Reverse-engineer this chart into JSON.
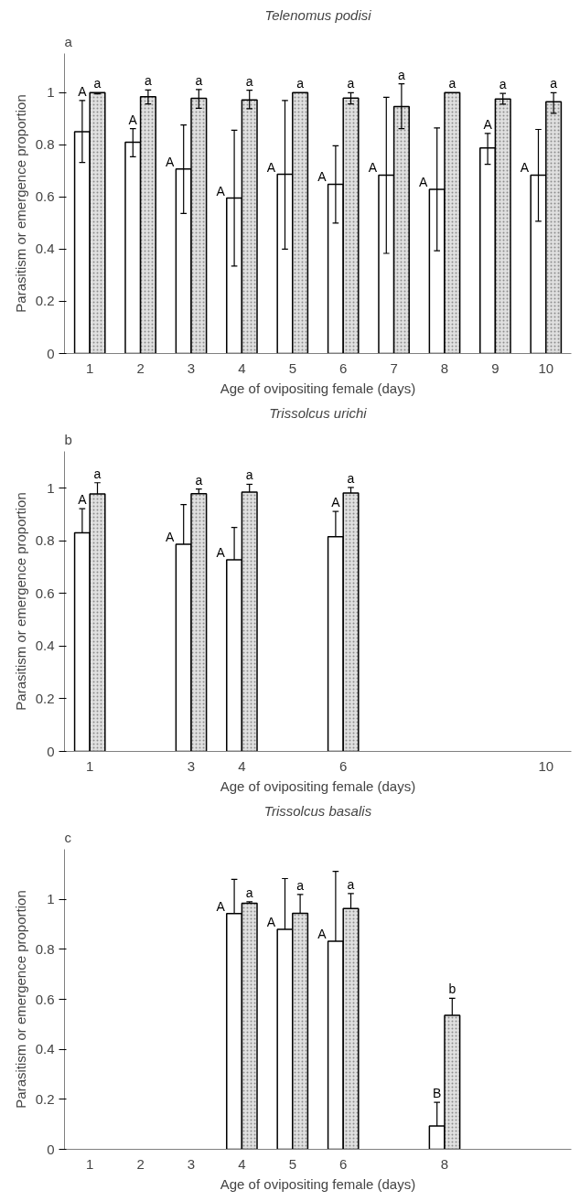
{
  "chart_data": [
    {
      "type": "bar",
      "title": "Telenomus podisi",
      "xlabel": "Age of ovipositing female (days)",
      "ylabel": "Parasitism or emergence proportion",
      "annotations": [
        "a"
      ],
      "categories": [
        "1",
        "2",
        "3",
        "4",
        "5",
        "6",
        "7",
        "8",
        "9",
        "10"
      ],
      "ylim": [
        0,
        1.15
      ],
      "yticks": [
        0,
        0.2,
        0.4,
        0.6,
        0.8,
        1
      ],
      "grid": false,
      "series": [
        {
          "color": "#ffffff",
          "values": [
            0.85,
            0.81,
            0.707,
            0.596,
            0.687,
            0.649,
            0.684,
            0.629,
            0.788,
            0.684
          ],
          "errors": [
            [
              0.732,
              0.97
            ],
            [
              0.754,
              0.862
            ],
            [
              0.537,
              0.876
            ],
            [
              0.335,
              0.856
            ],
            [
              0.4,
              0.97
            ],
            [
              0.5,
              0.796
            ],
            [
              0.384,
              0.982
            ],
            [
              0.394,
              0.865
            ],
            [
              0.725,
              0.844
            ],
            [
              0.507,
              0.859
            ]
          ],
          "value_labels": [
            "A",
            "A",
            "A",
            "A",
            "A",
            "A",
            "A",
            "A",
            "A",
            "A"
          ]
        },
        {
          "color": "#e0e0e0",
          "values": [
            1.0,
            0.984,
            0.978,
            0.972,
            1.0,
            0.979,
            0.947,
            1.0,
            0.976,
            0.965
          ],
          "errors": [
            [
              0.995,
              1.0
            ],
            [
              0.957,
              1.01
            ],
            [
              0.94,
              1.012
            ],
            [
              0.938,
              1.009
            ],
            null,
            [
              0.957,
              1.0
            ],
            [
              0.862,
              1.034
            ],
            null,
            [
              0.956,
              0.997
            ],
            [
              0.921,
              1.0
            ]
          ],
          "value_labels": [
            "a",
            "a",
            "a",
            "a",
            "a",
            "a",
            "a",
            "a",
            "a",
            "a"
          ]
        }
      ]
    },
    {
      "type": "bar",
      "title": "Trissolcus urichi",
      "xlabel": "Age of ovipositing female (days)",
      "ylabel": "Parasitism or emergence proportion",
      "annotations": [
        "b"
      ],
      "categories": [
        "1",
        null,
        "3",
        "4",
        null,
        "6",
        null,
        null,
        null,
        "10"
      ],
      "ylim": [
        0,
        1.14
      ],
      "yticks": [
        0,
        0.2,
        0.4,
        0.6,
        0.8,
        1
      ],
      "grid": false,
      "series": [
        {
          "color": "#ffffff",
          "values": [
            0.831,
            null,
            0.787,
            0.728,
            null,
            0.816,
            null,
            null,
            null,
            null
          ],
          "errors": [
            [
              0.831,
              0.922
            ],
            null,
            [
              0.787,
              0.938
            ],
            [
              0.728,
              0.851
            ],
            null,
            [
              0.816,
              0.912
            ],
            null,
            null,
            null,
            null
          ],
          "value_labels": [
            "A",
            null,
            "A",
            "A",
            null,
            "A",
            null,
            null,
            null,
            null
          ]
        },
        {
          "color": "#e0e0e0",
          "values": [
            0.978,
            null,
            0.979,
            0.985,
            null,
            0.982,
            null,
            null,
            null,
            null
          ],
          "errors": [
            [
              0.978,
              1.021
            ],
            null,
            [
              0.979,
              0.997
            ],
            [
              0.985,
              1.015
            ],
            null,
            [
              0.982,
              1.003
            ],
            null,
            null,
            null,
            null
          ],
          "value_labels": [
            "a",
            null,
            "a",
            "a",
            null,
            "a",
            null,
            null,
            null,
            null
          ]
        }
      ]
    },
    {
      "type": "bar",
      "title": "Trissolcus basalis",
      "xlabel": "Age of ovipositing female (days)",
      "ylabel": "Parasitism or emergence proportion",
      "annotations": [
        "c"
      ],
      "categories": [
        "1",
        "2",
        "3",
        "4",
        "5",
        "6",
        null,
        "8",
        null,
        null
      ],
      "ylim": [
        0,
        1.2
      ],
      "yticks": [
        0,
        0.2,
        0.4,
        0.6,
        0.8,
        1
      ],
      "grid": false,
      "series": [
        {
          "color": "#ffffff",
          "values": [
            null,
            null,
            null,
            0.943,
            0.88,
            0.832,
            null,
            0.093,
            null,
            null
          ],
          "errors": [
            null,
            null,
            null,
            [
              0.943,
              1.08
            ],
            [
              0.88,
              1.083
            ],
            [
              0.832,
              1.112
            ],
            null,
            [
              0.093,
              0.188
            ],
            null,
            null
          ],
          "value_labels": [
            null,
            null,
            null,
            "A",
            "A",
            "A",
            null,
            "B",
            null,
            null
          ]
        },
        {
          "color": "#e0e0e0",
          "values": [
            null,
            null,
            null,
            0.984,
            0.944,
            0.963,
            null,
            0.536,
            null,
            null
          ],
          "errors": [
            null,
            null,
            null,
            [
              0.984,
              0.99
            ],
            [
              0.944,
              1.019
            ],
            [
              0.963,
              1.023
            ],
            null,
            [
              0.536,
              0.604
            ],
            null,
            null
          ],
          "value_labels": [
            null,
            null,
            null,
            "a",
            "a",
            "a",
            null,
            "b",
            null,
            null
          ]
        }
      ]
    }
  ]
}
